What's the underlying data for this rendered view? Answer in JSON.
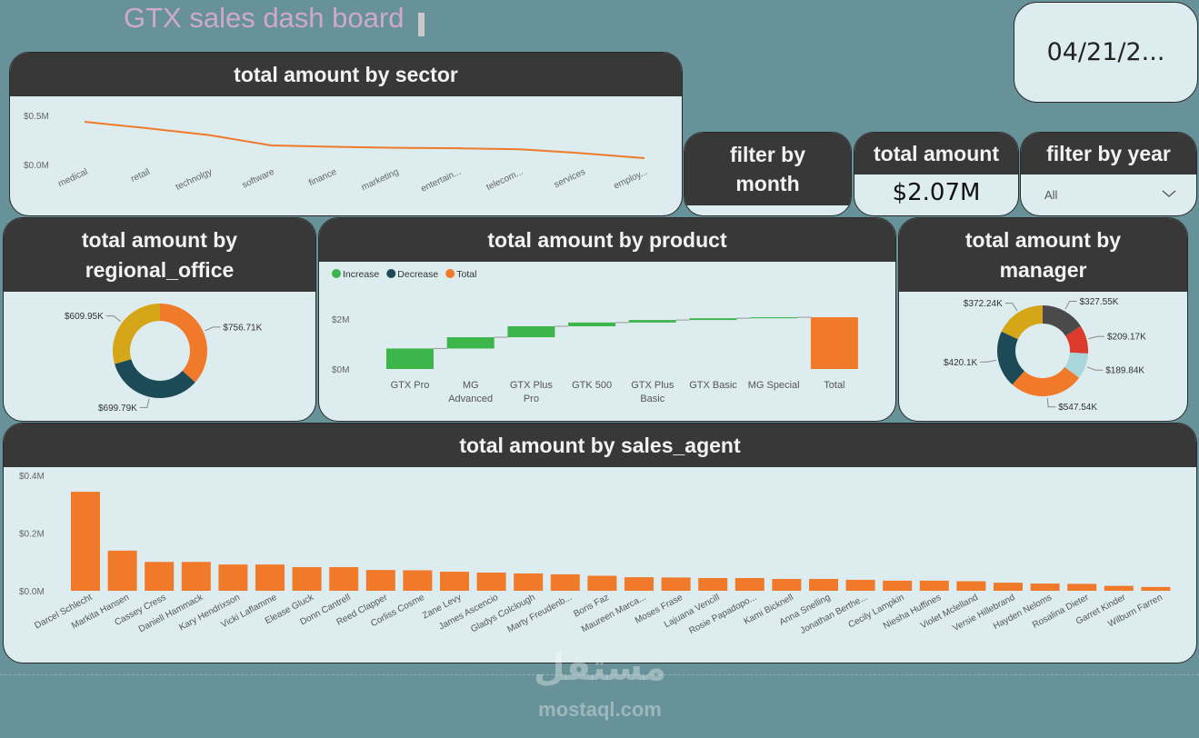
{
  "header": {
    "title": "GTX sales dash board"
  },
  "date_card": {
    "text": "04/21/2..."
  },
  "cards": {
    "filter_month": {
      "title": "filter by month"
    },
    "total_amount": {
      "title": "total amount",
      "value": "$2.07M"
    },
    "filter_year": {
      "title": "filter by year",
      "selected": "All"
    }
  },
  "watermark": {
    "arabic": "مستقل",
    "latin": "mostaql.com"
  },
  "chart_data": [
    {
      "type": "line",
      "title": "total amount by sector",
      "categories": [
        "medical",
        "retail",
        "technolgy",
        "software",
        "finance",
        "marketing",
        "entertain...",
        "telecom...",
        "services",
        "employ..."
      ],
      "values": [
        435000,
        370000,
        300000,
        195000,
        180000,
        170000,
        165000,
        155000,
        115000,
        65000
      ],
      "color": "#f07a2a",
      "ylim": [
        0,
        550000
      ],
      "yticks": [
        {
          "value": 0,
          "label": "$0.0M"
        },
        {
          "value": 500000,
          "label": "$0.5M"
        }
      ]
    },
    {
      "type": "donut",
      "title": "total amount by regional_office",
      "values": [
        756710,
        699790,
        609950
      ],
      "value_labels": [
        "$756.71K",
        "$699.79K",
        "$609.95K"
      ],
      "colors": [
        "#f07a2a",
        "#1c4a57",
        "#d5a617"
      ]
    },
    {
      "type": "waterfall",
      "title": "total amount by product",
      "categories": [
        "GTX Pro",
        "MG Advanced",
        "GTX Plus Pro",
        "GTK 500",
        "GTX Plus Basic",
        "GTX Basic",
        "MG Special",
        "Total"
      ],
      "values": [
        820000,
        450000,
        440000,
        150000,
        100000,
        70000,
        40000,
        2070000
      ],
      "measure": [
        "relative",
        "relative",
        "relative",
        "relative",
        "relative",
        "relative",
        "relative",
        "total"
      ],
      "legend": [
        {
          "name": "Increase",
          "color": "#3cb54a"
        },
        {
          "name": "Decrease",
          "color": "#1c4a57"
        },
        {
          "name": "Total",
          "color": "#f07a2a"
        }
      ],
      "ylim": [
        0,
        2400000
      ],
      "yticks": [
        {
          "value": 0,
          "label": "$0M"
        },
        {
          "value": 2000000,
          "label": "$2M"
        }
      ]
    },
    {
      "type": "donut",
      "title": "total amount by manager",
      "values": [
        327550,
        209170,
        189840,
        547540,
        420100,
        372240
      ],
      "value_labels": [
        "$327.55K",
        "$209.17K",
        "$189.84K",
        "$547.54K",
        "$420.1K",
        "$372.24K"
      ],
      "colors": [
        "#4a4a4a",
        "#dc3a2d",
        "#a9d6da",
        "#f07a2a",
        "#1c4a57",
        "#d5a617"
      ]
    },
    {
      "type": "bar",
      "title": "total amount by sales_agent",
      "categories": [
        "Darcel Schlecht",
        "Markita Hansen",
        "Cassey Cress",
        "Daniell Hammack",
        "Kary Hendrixson",
        "Vicki Laflamme",
        "Elease Gluck",
        "Donn Cantrell",
        "Reed Clapper",
        "Corliss Cosme",
        "Zane Levy",
        "James Ascencio",
        "Gladys Colclough",
        "Marty Freudenb...",
        "Boris Faz",
        "Maureen Marca...",
        "Moses Frase",
        "Lajuana Vencill",
        "Rosie Papadopo...",
        "Kami Bicknell",
        "Anna Snelling",
        "Jonathan Berthe...",
        "Cecily Lampkin",
        "Niesha Huffines",
        "Violet Mclelland",
        "Versie Hillebrand",
        "Hayden Neloms",
        "Rosalina Dieter",
        "Garret Kinder",
        "Wilburn Farren"
      ],
      "values": [
        343000,
        139000,
        100000,
        100000,
        91000,
        91000,
        82000,
        82000,
        72000,
        71000,
        66000,
        63000,
        60000,
        57000,
        52000,
        47000,
        46000,
        44000,
        44000,
        41000,
        41000,
        38000,
        35000,
        35000,
        33000,
        28000,
        25000,
        24000,
        17000,
        13000
      ],
      "color": "#f07a2a",
      "ylim": [
        0,
        400000
      ],
      "yticks": [
        {
          "value": 0,
          "label": "$0.0M"
        },
        {
          "value": 200000,
          "label": "$0.2M"
        },
        {
          "value": 400000,
          "label": "$0.4M"
        }
      ]
    }
  ]
}
